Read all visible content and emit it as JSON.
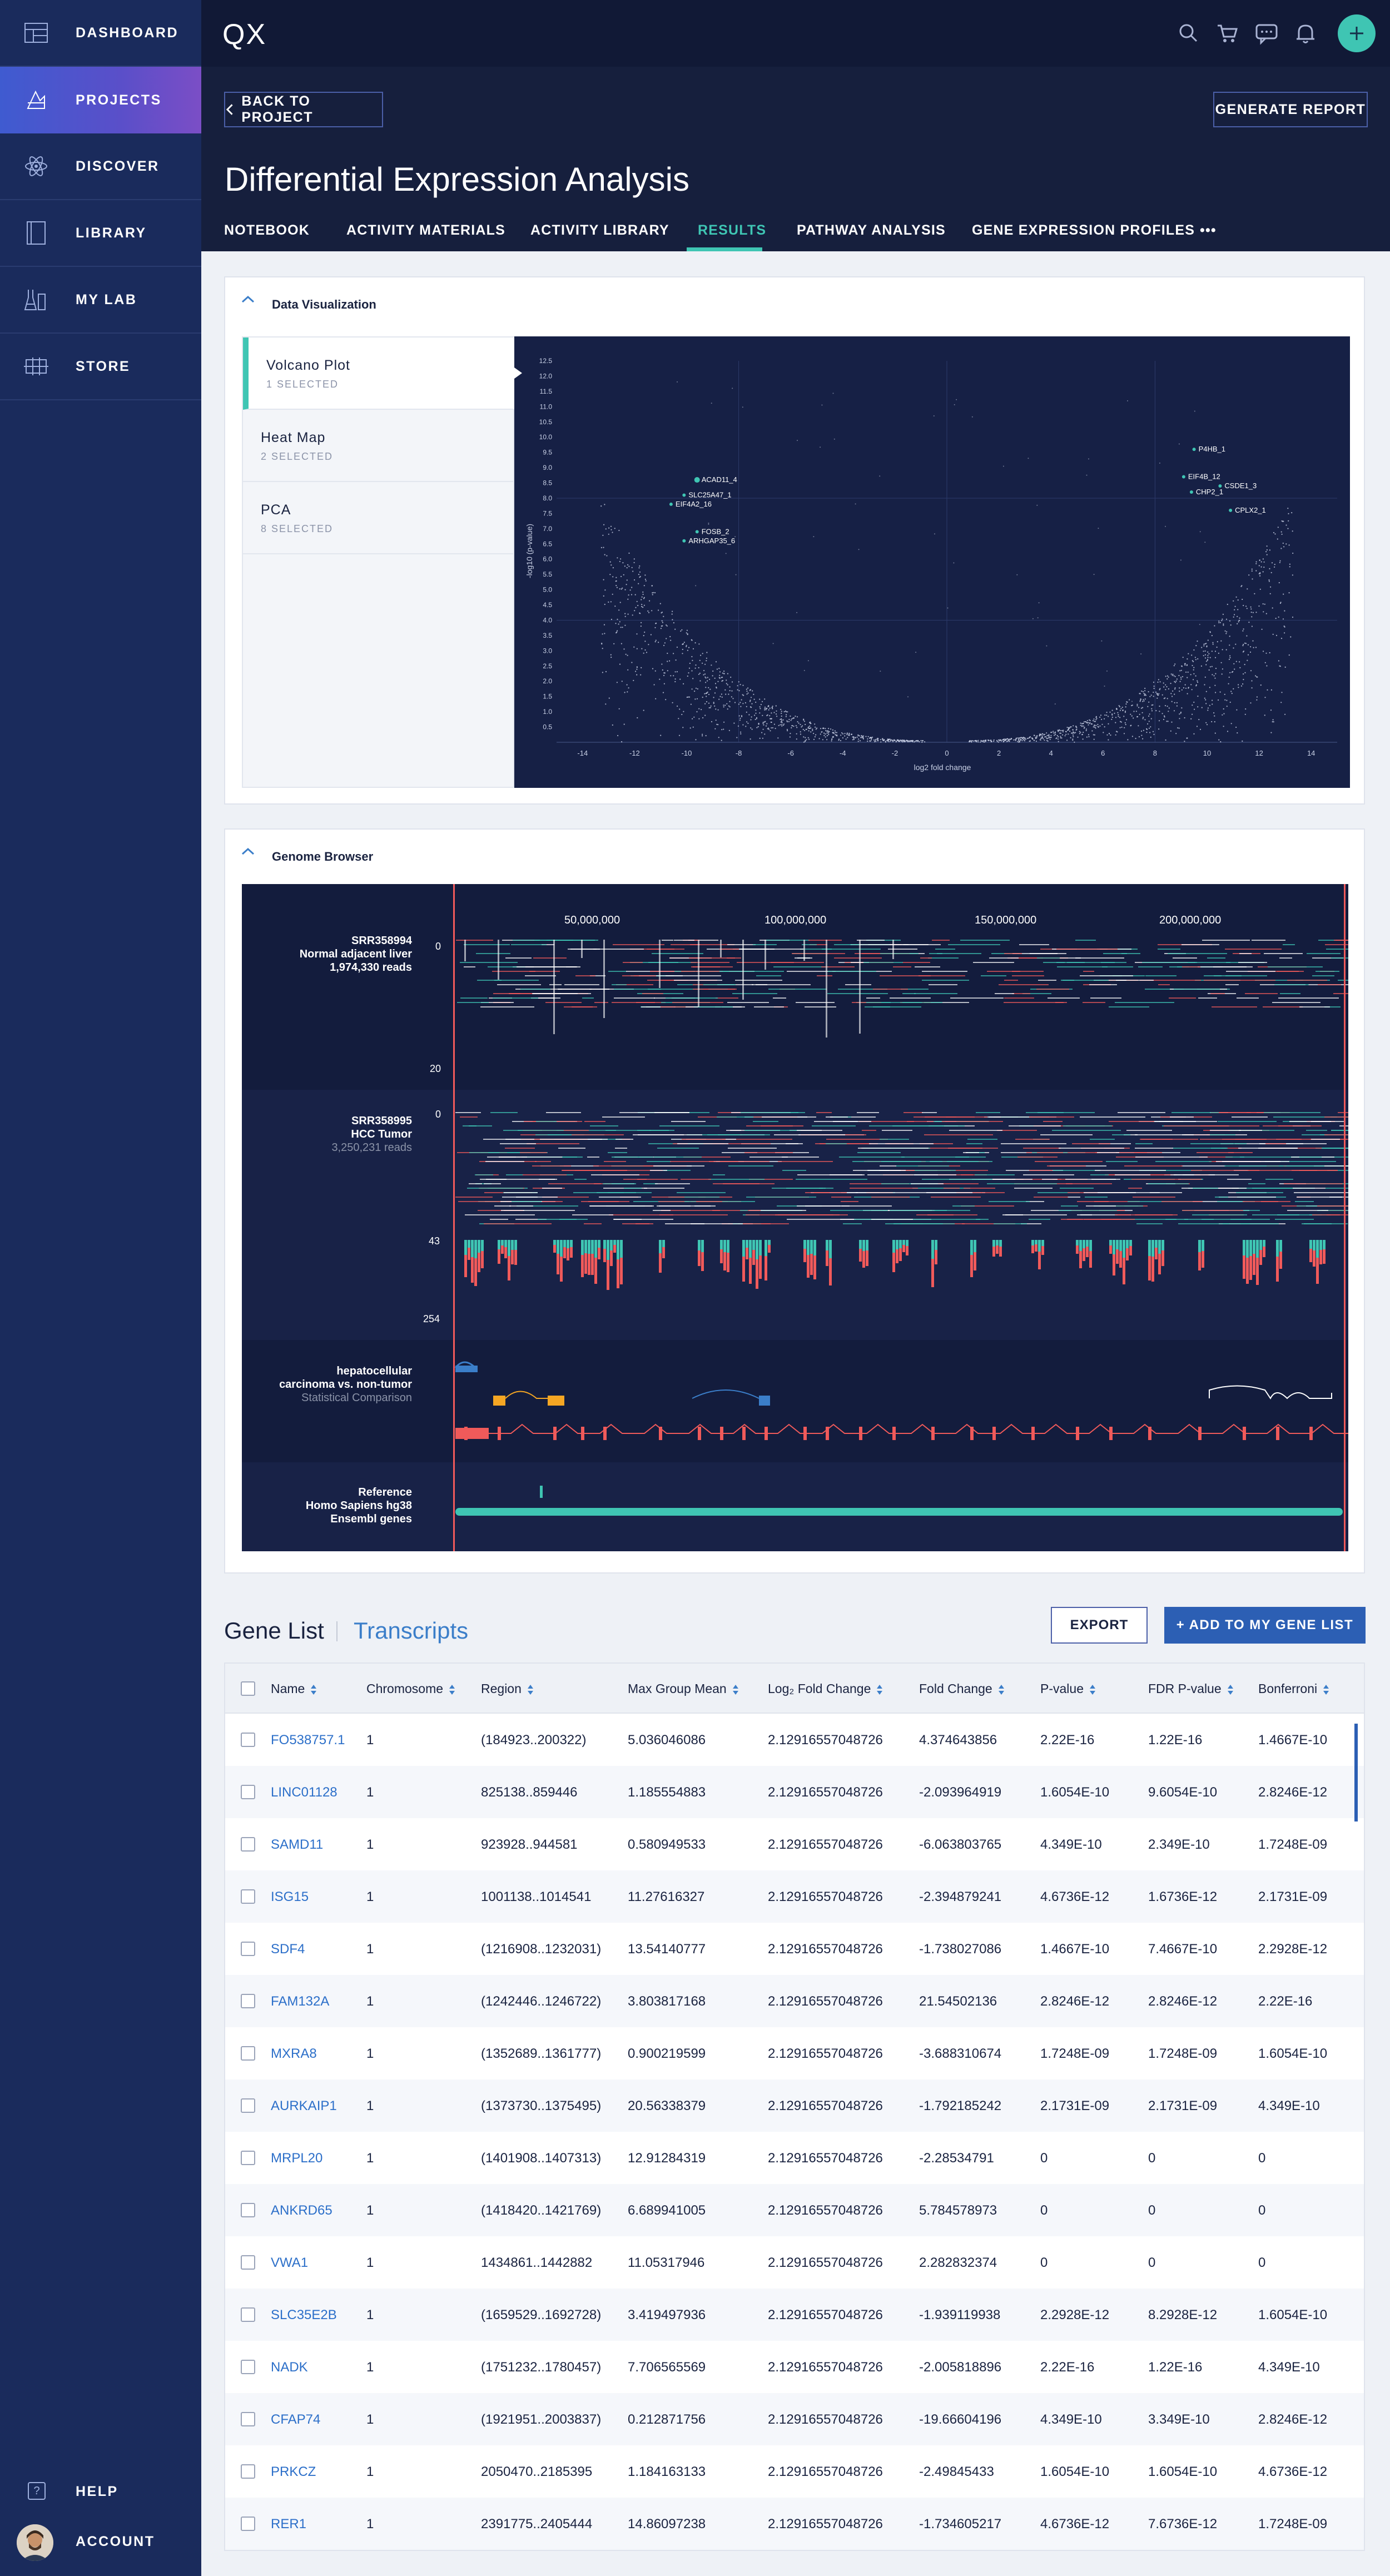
{
  "app": {
    "logo": "QX"
  },
  "sidebar": {
    "items": [
      {
        "label": "DASHBOARD",
        "icon": "dashboard-icon"
      },
      {
        "label": "PROJECTS",
        "icon": "projects-icon",
        "active": true
      },
      {
        "label": "DISCOVER",
        "icon": "atom-icon"
      },
      {
        "label": "LIBRARY",
        "icon": "book-icon"
      },
      {
        "label": "MY LAB",
        "icon": "lab-icon"
      },
      {
        "label": "STORE",
        "icon": "store-icon"
      }
    ],
    "help_label": "HELP",
    "account_label": "ACCOUNT"
  },
  "header": {
    "back_label": "BACK TO PROJECT",
    "report_label": "GENERATE REPORT",
    "title": "Differential Expression Analysis",
    "tabs": [
      {
        "label": "NOTEBOOK"
      },
      {
        "label": "ACTIVITY MATERIALS"
      },
      {
        "label": "ACTIVITY LIBRARY"
      },
      {
        "label": "RESULTS",
        "active": true
      },
      {
        "label": "PATHWAY ANALYSIS"
      },
      {
        "label": "GENE EXPRESSION PROFILES"
      },
      {
        "label": "•••"
      }
    ]
  },
  "dataviz": {
    "title": "Data Visualization",
    "charts": [
      {
        "name": "Volcano Plot",
        "sub": "1 SELECTED",
        "active": true
      },
      {
        "name": "Heat Map",
        "sub": "2 SELECTED"
      },
      {
        "name": "PCA",
        "sub": "8 SELECTED"
      }
    ]
  },
  "chart_data": {
    "type": "scatter",
    "title": "",
    "xlabel": "log2 fold change",
    "ylabel": "-log10 (p-value)",
    "xlim": [
      -15,
      15
    ],
    "ylim": [
      0,
      12.5
    ],
    "x_ticks": [
      -14,
      -12,
      -10,
      -8,
      -6,
      -4,
      -2,
      0,
      2,
      4,
      6,
      8,
      10,
      12,
      14
    ],
    "y_ticks": [
      0.5,
      1,
      1.5,
      2,
      2.5,
      3,
      3.5,
      4,
      4.5,
      5,
      5.5,
      6,
      6.5,
      7,
      7.5,
      8,
      8.5,
      9,
      9.5,
      10,
      10.5,
      11,
      11.5,
      12,
      12.5
    ],
    "grid": true,
    "colors": {
      "background": "#162045",
      "points": "#c9d1e6",
      "highlight": "#3fc5b3"
    },
    "labeled_points": [
      {
        "label": "ACAD11_4",
        "x": -9.6,
        "y": 8.6
      },
      {
        "label": "SLC25A47_1",
        "x": -10.1,
        "y": 8.1
      },
      {
        "label": "EIF4A2_16",
        "x": -10.6,
        "y": 7.8
      },
      {
        "label": "FOSB_2",
        "x": -9.6,
        "y": 6.9
      },
      {
        "label": "ARHGAP35_6",
        "x": -10.1,
        "y": 6.6
      },
      {
        "label": "P4HB_1",
        "x": 9.5,
        "y": 9.6
      },
      {
        "label": "EIF4B_12",
        "x": 9.1,
        "y": 8.7
      },
      {
        "label": "CSDE1_3",
        "x": 10.5,
        "y": 8.4
      },
      {
        "label": "CHP2_1",
        "x": 9.4,
        "y": 8.2
      },
      {
        "label": "CPLX2_1",
        "x": 10.9,
        "y": 7.6
      }
    ]
  },
  "genome": {
    "title": "Genome Browser",
    "positions": [
      "50,000,000",
      "100,000,000",
      "150,000,000",
      "200,000,000"
    ],
    "track1": {
      "id": "SRR358994",
      "desc": "Normal adjacent liver",
      "reads": "1,974,330 reads",
      "top": "0",
      "bottom": "20"
    },
    "track2": {
      "id": "SRR358995",
      "desc": "HCC Tumor",
      "reads": "3,250,231 reads",
      "top": "0",
      "mid": "43",
      "bottom": "254"
    },
    "track3": {
      "line1": "hepatocellular",
      "line2": "carcinoma vs. non-tumor",
      "sub": "Statistical Comparison"
    },
    "track4": {
      "line1": "Reference",
      "line2": "Homo Sapiens hg38",
      "line3": "Ensembl genes"
    }
  },
  "genelist": {
    "title": "Gene List",
    "tab2": "Transcripts",
    "export_label": "EXPORT",
    "add_label": "+ ADD TO MY GENE LIST",
    "columns": [
      "Name",
      "Chromosome",
      "Region",
      "Max Group Mean",
      "Log₂ Fold Change",
      "Fold Change",
      "P-value",
      "FDR P-value",
      "Bonferroni"
    ],
    "rows": [
      [
        "FO538757.1",
        "1",
        "(184923..200322)",
        "5.036046086",
        "2.12916557048726",
        "4.374643856",
        "2.22E-16",
        "1.22E-16",
        "1.4667E-10"
      ],
      [
        "LINC01128",
        "1",
        "825138..859446",
        "1.185554883",
        "2.12916557048726",
        "-2.093964919",
        "1.6054E-10",
        "9.6054E-10",
        "2.8246E-12"
      ],
      [
        "SAMD11",
        "1",
        "923928..944581",
        "0.580949533",
        "2.12916557048726",
        "-6.063803765",
        "4.349E-10",
        "2.349E-10",
        "1.7248E-09"
      ],
      [
        "ISG15",
        "1",
        "1001138..1014541",
        "11.27616327",
        "2.12916557048726",
        "-2.394879241",
        "4.6736E-12",
        "1.6736E-12",
        "2.1731E-09"
      ],
      [
        "SDF4",
        "1",
        "(1216908..1232031)",
        "13.54140777",
        "2.12916557048726",
        "-1.738027086",
        "1.4667E-10",
        "7.4667E-10",
        "2.2928E-12"
      ],
      [
        "FAM132A",
        "1",
        "(1242446..1246722)",
        "3.803817168",
        "2.12916557048726",
        "21.54502136",
        "2.8246E-12",
        "2.8246E-12",
        "2.22E-16"
      ],
      [
        "MXRA8",
        "1",
        "(1352689..1361777)",
        "0.900219599",
        "2.12916557048726",
        "-3.688310674",
        "1.7248E-09",
        "1.7248E-09",
        "1.6054E-10"
      ],
      [
        "AURKAIP1",
        "1",
        "(1373730..1375495)",
        "20.56338379",
        "2.12916557048726",
        "-1.792185242",
        "2.1731E-09",
        "2.1731E-09",
        "4.349E-10"
      ],
      [
        "MRPL20",
        "1",
        "(1401908..1407313)",
        "12.91284319",
        "2.12916557048726",
        "-2.28534791",
        "0",
        "0",
        "0"
      ],
      [
        "ANKRD65",
        "1",
        "(1418420..1421769)",
        "6.689941005",
        "2.12916557048726",
        "5.784578973",
        "0",
        "0",
        "0"
      ],
      [
        "VWA1",
        "1",
        "1434861..1442882",
        "11.05317946",
        "2.12916557048726",
        "2.282832374",
        "0",
        "0",
        "0"
      ],
      [
        "SLC35E2B",
        "1",
        "(1659529..1692728)",
        "3.419497936",
        "2.12916557048726",
        "-1.939119938",
        "2.2928E-12",
        "8.2928E-12",
        "1.6054E-10"
      ],
      [
        "NADK",
        "1",
        "(1751232..1780457)",
        "7.706565569",
        "2.12916557048726",
        "-2.005818896",
        "2.22E-16",
        "1.22E-16",
        "4.349E-10"
      ],
      [
        "CFAP74",
        "1",
        "(1921951..2003837)",
        "0.212871756",
        "2.12916557048726",
        "-19.66604196",
        "4.349E-10",
        "3.349E-10",
        "2.8246E-12"
      ],
      [
        "PRKCZ",
        "1",
        "2050470..2185395",
        "1.184163133",
        "2.12916557048726",
        "-2.49845433",
        "1.6054E-10",
        "1.6054E-10",
        "4.6736E-12"
      ],
      [
        "RER1",
        "1",
        "2391775..2405444",
        "14.86097238",
        "2.12916557048726",
        "-1.734605217",
        "4.6736E-12",
        "7.6736E-12",
        "1.7248E-09"
      ]
    ]
  }
}
